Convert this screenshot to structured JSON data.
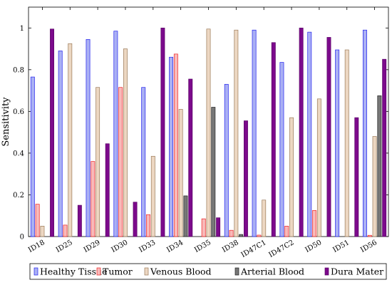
{
  "chart_data": {
    "type": "bar",
    "ylabel": "Sensitivity",
    "xlabel": "",
    "ylim": [
      0,
      1.1
    ],
    "yticks": [
      0,
      0.2,
      0.4,
      0.6,
      0.8,
      1
    ],
    "grid": false,
    "legend_position": "bottom",
    "categories": [
      "ID18",
      "ID25",
      "ID29",
      "ID30",
      "ID33",
      "ID34",
      "ID35",
      "ID38",
      "ID47C1",
      "ID47C2",
      "ID50",
      "ID51",
      "ID56"
    ],
    "series": [
      {
        "name": "Healthy Tissue",
        "fill": "#aab0f4",
        "stroke": "#2222ee",
        "values": [
          0.765,
          0.89,
          0.945,
          0.985,
          0.715,
          0.86,
          0,
          0.73,
          0.99,
          0.835,
          0.98,
          0.895,
          0.99
        ]
      },
      {
        "name": "Tumor",
        "fill": "#f9b9b9",
        "stroke": "#ee2222",
        "values": [
          0.155,
          0.055,
          0.36,
          0.715,
          0.105,
          0.875,
          0.085,
          0.03,
          0.007,
          0.05,
          0.125,
          0,
          0.006
        ]
      },
      {
        "name": "Venous Blood",
        "fill": "#ecd7c2",
        "stroke": "#9b7b5a",
        "values": [
          0.05,
          0.925,
          0.715,
          0.9,
          0.385,
          0.61,
          0.995,
          0.99,
          0.175,
          0.57,
          0.66,
          0.895,
          0.48
        ]
      },
      {
        "name": "Arterial Blood",
        "fill": "#777777",
        "stroke": "#222222",
        "values": [
          0,
          0,
          0,
          0,
          0,
          0.195,
          0.62,
          0.01,
          0,
          0,
          0,
          0,
          0.675
        ]
      },
      {
        "name": "Dura Mater",
        "fill": "#7c0a8c",
        "stroke": "#5a0066",
        "values": [
          0.995,
          0.15,
          0.445,
          0.165,
          1.0,
          0.755,
          0.09,
          0.555,
          0.93,
          1.0,
          0.955,
          0.57,
          0.85
        ]
      }
    ]
  }
}
